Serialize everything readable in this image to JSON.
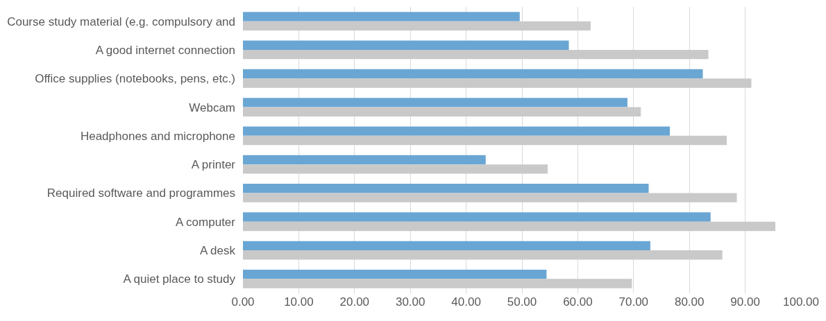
{
  "chart_data": {
    "type": "bar",
    "orientation": "horizontal",
    "categories": [
      "Course study material (e.g. compulsory and",
      "A good internet connection",
      "Office supplies (notebooks, pens, etc.)",
      "Webcam",
      "Headphones and microphone",
      "A printer",
      "Required software and programmes",
      "A computer",
      "A desk",
      "A quiet place to study"
    ],
    "series": [
      {
        "color": "#6aa6d4",
        "values": [
          49.6,
          58.4,
          82.4,
          68.9,
          76.5,
          43.5,
          72.7,
          83.8,
          73.0,
          54.4
        ]
      },
      {
        "color": "#c9c9c9",
        "values": [
          62.3,
          83.4,
          91.1,
          71.3,
          86.7,
          54.6,
          88.5,
          95.4,
          85.9,
          69.7
        ]
      }
    ],
    "xlim": [
      0,
      100
    ],
    "xticks": [
      {
        "value": 0,
        "label": "0.00"
      },
      {
        "value": 10,
        "label": "10.00"
      },
      {
        "value": 20,
        "label": "20.00"
      },
      {
        "value": 30,
        "label": "30.00"
      },
      {
        "value": 40,
        "label": "40.00"
      },
      {
        "value": 50,
        "label": "50.00"
      },
      {
        "value": 60,
        "label": "60.00"
      },
      {
        "value": 70,
        "label": "70.00"
      },
      {
        "value": 80,
        "label": "80.00"
      },
      {
        "value": 90,
        "label": "90.00"
      },
      {
        "value": 100,
        "label": "100.00"
      }
    ],
    "grid": "x"
  }
}
